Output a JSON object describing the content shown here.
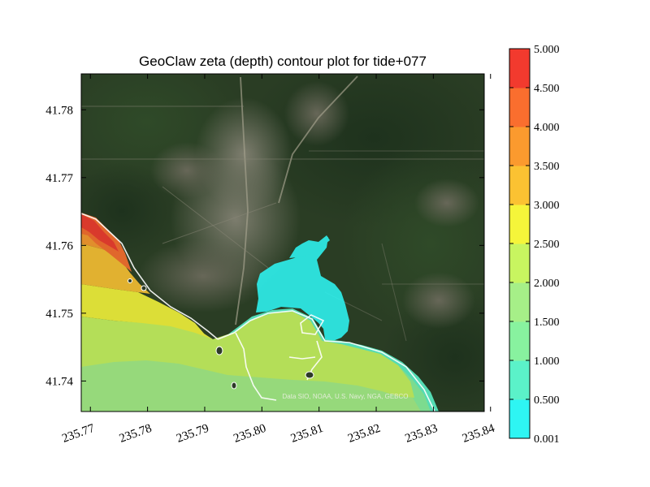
{
  "chart_data": {
    "type": "heatmap",
    "title": "GeoClaw zeta (depth) contour plot for tide+077",
    "xlabel": "",
    "ylabel": "",
    "xlim": [
      235.7684,
      235.8389
    ],
    "ylim": [
      41.7355,
      41.7853
    ],
    "x_ticks": [
      "235.77",
      "235.78",
      "235.79",
      "235.80",
      "235.81",
      "235.82",
      "235.83",
      "235.84"
    ],
    "x_tick_values": [
      235.77,
      235.78,
      235.79,
      235.8,
      235.81,
      235.82,
      235.83,
      235.84
    ],
    "y_ticks": [
      "41.74",
      "41.75",
      "41.76",
      "41.77",
      "41.78"
    ],
    "y_tick_values": [
      41.74,
      41.75,
      41.76,
      41.77,
      41.78
    ],
    "background": "satellite imagery",
    "map_credit": "Data SIO, NOAA, U.S. Navy, NGA, GEBCO",
    "colorbar": {
      "levels": [
        "0.001",
        "0.500",
        "1.000",
        "1.500",
        "2.000",
        "2.500",
        "3.000",
        "3.500",
        "4.000",
        "4.500",
        "5.000"
      ],
      "colors": [
        "#2ef5f3",
        "#5bf2c9",
        "#88f29f",
        "#a6ef88",
        "#c8f560",
        "#f5f53a",
        "#fbc232",
        "#fb9a2e",
        "#fa6e2e",
        "#f23a2e"
      ]
    },
    "contour_regions": [
      {
        "zeta_range": "4.500-5.000",
        "location": "northwest coastal strip"
      },
      {
        "zeta_range": "4.000-4.500",
        "location": "northwest coastal strip"
      },
      {
        "zeta_range": "3.500-4.000",
        "location": "northwest coastal strip"
      },
      {
        "zeta_range": "3.000-3.500",
        "location": "northwest coastal band"
      },
      {
        "zeta_range": "2.500-3.000",
        "location": "northwest offshore"
      },
      {
        "zeta_range": "2.000-2.500",
        "location": "west offshore band"
      },
      {
        "zeta_range": "1.500-2.000",
        "location": "southwest offshore"
      },
      {
        "zeta_range": "1.000-1.500",
        "location": "southwest corner"
      },
      {
        "zeta_range": "0.500-1.000",
        "location": "harbor basin"
      },
      {
        "zeta_range": "0.001-0.500",
        "location": "inundated inlet / creek"
      }
    ]
  }
}
